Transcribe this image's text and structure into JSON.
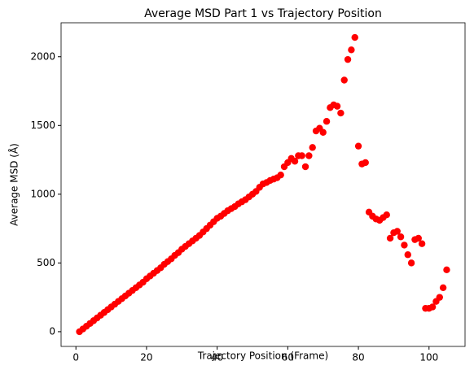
{
  "chart_data": {
    "type": "scatter",
    "title": "Average MSD Part 1 vs Trajectory Position",
    "x_label": "Trajectory Position (Frame)",
    "y_label": "Average MSD (Å)",
    "color": "#ff0000",
    "grid": false,
    "xlim": [
      -4.2,
      110.2
    ],
    "ylim": [
      -107,
      2247
    ],
    "xticks": [
      0,
      20,
      40,
      60,
      80,
      100
    ],
    "yticks": [
      0,
      500,
      1000,
      1500,
      2000
    ],
    "x": [
      1,
      2,
      3,
      4,
      5,
      6,
      7,
      8,
      9,
      10,
      11,
      12,
      13,
      14,
      15,
      16,
      17,
      18,
      19,
      20,
      21,
      22,
      23,
      24,
      25,
      26,
      27,
      28,
      29,
      30,
      31,
      32,
      33,
      34,
      35,
      36,
      37,
      38,
      39,
      40,
      41,
      42,
      43,
      44,
      45,
      46,
      47,
      48,
      49,
      50,
      51,
      52,
      53,
      54,
      55,
      56,
      57,
      58,
      59,
      60,
      61,
      62,
      63,
      64,
      65,
      66,
      67,
      68,
      69,
      70,
      71,
      72,
      73,
      74,
      75,
      76,
      77,
      78,
      79,
      80,
      81,
      82,
      83,
      84,
      85,
      86,
      87,
      88,
      89,
      90,
      91,
      92,
      93,
      94,
      95,
      96,
      97,
      98,
      99,
      100,
      101,
      102,
      103,
      104,
      105
    ],
    "values": [
      0,
      20,
      40,
      60,
      80,
      100,
      120,
      140,
      160,
      180,
      200,
      220,
      240,
      260,
      280,
      300,
      320,
      340,
      360,
      385,
      405,
      425,
      445,
      465,
      490,
      510,
      530,
      555,
      575,
      600,
      620,
      640,
      660,
      680,
      700,
      725,
      750,
      775,
      800,
      825,
      840,
      860,
      880,
      895,
      910,
      930,
      945,
      960,
      980,
      1000,
      1020,
      1050,
      1075,
      1085,
      1100,
      1110,
      1120,
      1140,
      1200,
      1230,
      1260,
      1240,
      1280,
      1280,
      1200,
      1280,
      1340,
      1460,
      1480,
      1450,
      1530,
      1630,
      1650,
      1640,
      1590,
      1830,
      1980,
      2050,
      2140,
      1350,
      1220,
      1230,
      870,
      840,
      820,
      810,
      830,
      850,
      680,
      720,
      730,
      690,
      630,
      560,
      500,
      670,
      680,
      640,
      170,
      170,
      180,
      220,
      250,
      320,
      450
    ]
  }
}
